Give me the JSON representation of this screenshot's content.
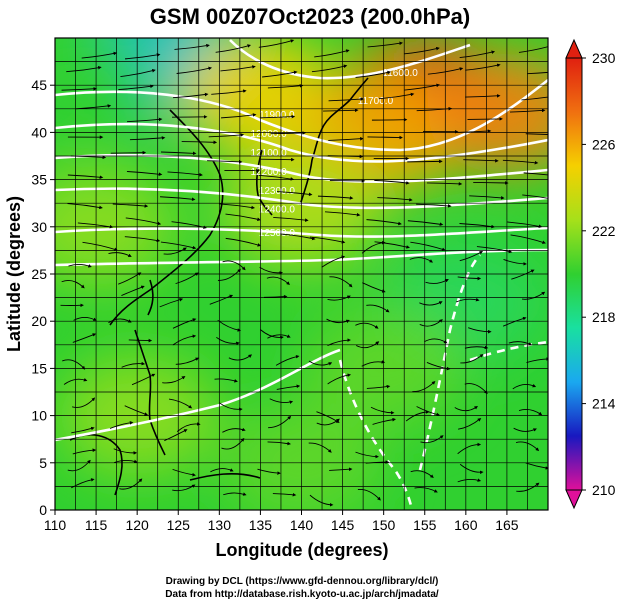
{
  "chart_data": {
    "type": "heatmap",
    "title": "GSM 00Z07Oct2023 (200.0hPa)",
    "xlabel": "Longitude (degrees)",
    "ylabel": "Latitude  (degrees)",
    "xlim": [
      110,
      170
    ],
    "ylim": [
      0,
      50
    ],
    "x_ticks": [
      110,
      115,
      120,
      125,
      130,
      135,
      140,
      145,
      150,
      155,
      160,
      165
    ],
    "y_ticks": [
      0,
      5,
      10,
      15,
      20,
      25,
      30,
      35,
      40,
      45
    ],
    "grid": true,
    "colorbar": {
      "min": 210,
      "max": 230,
      "ticks": [
        210,
        214,
        218,
        222,
        226,
        230
      ],
      "colors": [
        "#e0109a",
        "#1818c0",
        "#1aa8f0",
        "#19e0a0",
        "#30d030",
        "#a6e01a",
        "#f5d000",
        "#f07010",
        "#e02010"
      ]
    },
    "field_samples": [
      {
        "lon": 123,
        "lat": 48,
        "value": 216
      },
      {
        "lon": 112,
        "lat": 45,
        "value": 220
      },
      {
        "lon": 135,
        "lat": 44,
        "value": 225
      },
      {
        "lon": 155,
        "lat": 44,
        "value": 229
      },
      {
        "lon": 150,
        "lat": 40,
        "value": 226
      },
      {
        "lon": 165,
        "lat": 42,
        "value": 227
      },
      {
        "lon": 140,
        "lat": 32,
        "value": 223
      },
      {
        "lon": 115,
        "lat": 30,
        "value": 222
      },
      {
        "lon": 160,
        "lat": 22,
        "value": 219
      },
      {
        "lon": 150,
        "lat": 15,
        "value": 221
      },
      {
        "lon": 120,
        "lat": 10,
        "value": 222
      },
      {
        "lon": 140,
        "lat": 5,
        "value": 221
      }
    ],
    "contour_labels": [
      {
        "text": "11900.0",
        "lon": 137,
        "lat": 41.5
      },
      {
        "text": "12000.0",
        "lon": 136,
        "lat": 39.5
      },
      {
        "text": "12100.0",
        "lon": 136,
        "lat": 37.5
      },
      {
        "text": "12200.0",
        "lon": 136,
        "lat": 35.5
      },
      {
        "text": "12300.0",
        "lon": 137,
        "lat": 33.5
      },
      {
        "text": "12400.0",
        "lon": 137,
        "lat": 31.5
      },
      {
        "text": "12500.0",
        "lon": 137,
        "lat": 29
      },
      {
        "text": "11600.0",
        "lon": 152,
        "lat": 46
      },
      {
        "text": "11700.0",
        "lon": 149,
        "lat": 43
      }
    ]
  },
  "credits": {
    "line1": "Drawing by DCL (https://www.gfd-dennou.org/library/dcl/)",
    "line2": "Data from http://database.rish.kyoto-u.ac.jp/arch/jmadata/"
  }
}
